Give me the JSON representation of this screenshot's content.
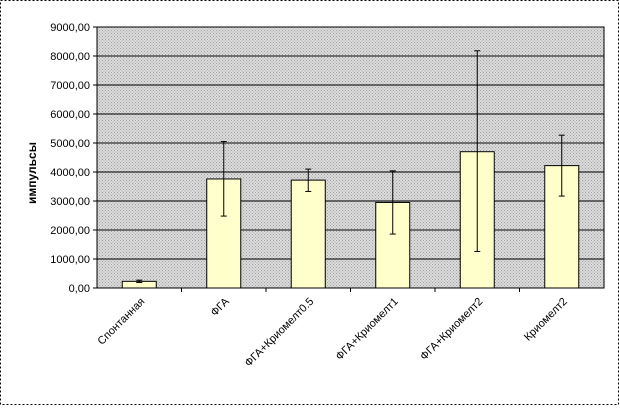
{
  "chart_data": {
    "type": "bar",
    "categories": [
      "Спонтанная",
      "ФГА",
      "ФГА+Криомелт0.5",
      "ФГА+Криомелт1",
      "ФГА+Криомелт2",
      "Криомелт2"
    ],
    "values": [
      230,
      3760,
      3720,
      2950,
      4700,
      4220
    ],
    "error_low": [
      190,
      2480,
      3330,
      1860,
      1260,
      3170
    ],
    "error_high": [
      270,
      5050,
      4100,
      4040,
      8180,
      5270
    ],
    "title": "",
    "xlabel": "",
    "ylabel": "импульсы",
    "ylim": [
      0,
      9000
    ],
    "yticks": [
      0,
      1000,
      2000,
      3000,
      4000,
      5000,
      6000,
      7000,
      8000,
      9000
    ],
    "ytick_labels": [
      "0,00",
      "1000,00",
      "2000,00",
      "3000,00",
      "4000,00",
      "5000,00",
      "6000,00",
      "7000,00",
      "8000,00",
      "9000,00"
    ],
    "grid": true,
    "legend": "none",
    "colors": {
      "bar_fill": "#ffffcc",
      "bar_stroke": "#000000",
      "plot_bg": "#c8c8c8",
      "grid": "#000000",
      "frame": "#000000"
    }
  }
}
